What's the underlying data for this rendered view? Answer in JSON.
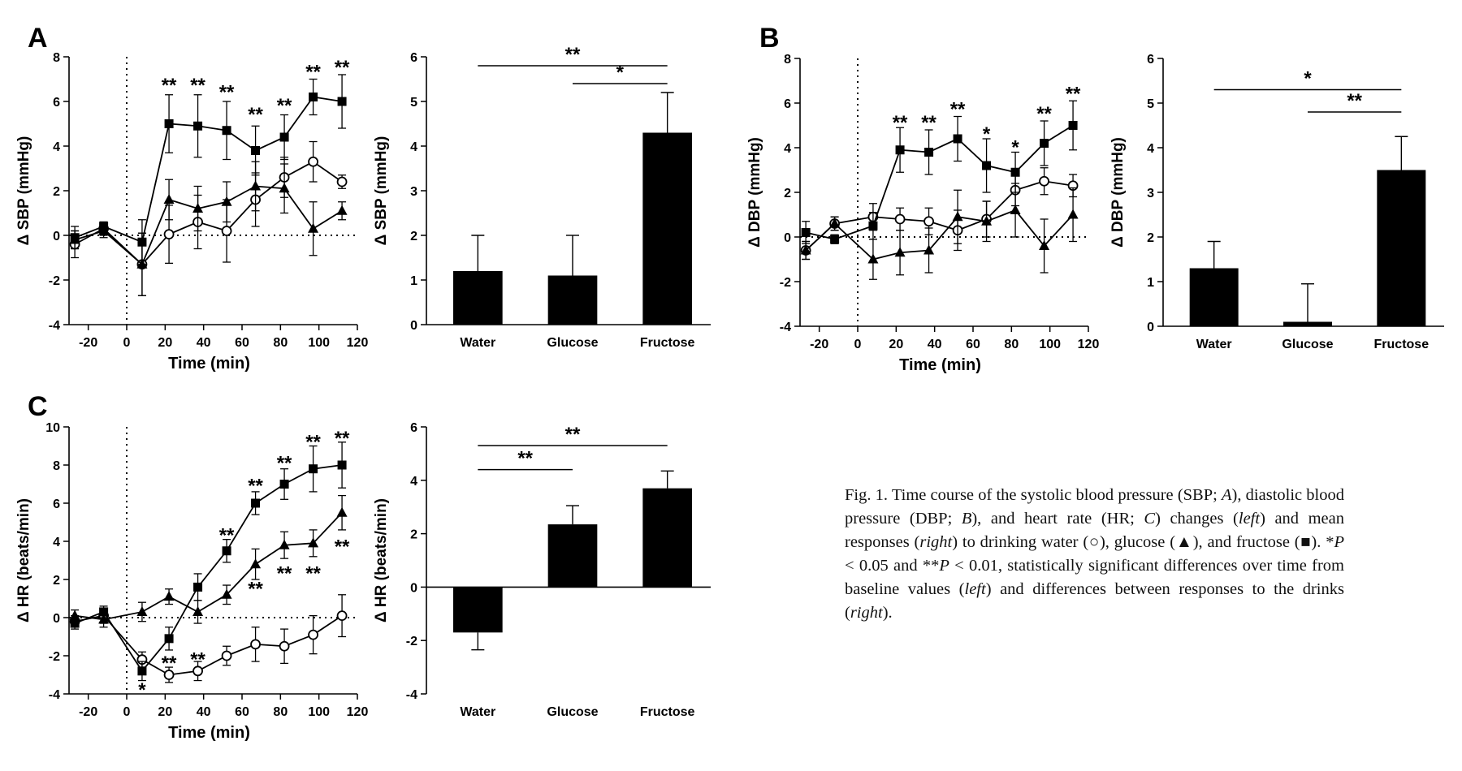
{
  "panel_labels": [
    "A",
    "B",
    "C"
  ],
  "caption": {
    "p1": "Fig. 1. Time course of the systolic blood pressure (SBP; ",
    "i1": "A",
    "p2": "), diastolic blood pressure (DBP; ",
    "i2": "B",
    "p3": "), and heart rate (HR; ",
    "i3": "C",
    "p4": ") changes (",
    "i4": "left",
    "p5": ") and mean responses (",
    "i5": "right",
    "p6": ") to drinking water (○), glucose (▲), and fructose (■). *",
    "i6": "P",
    "p7": " < 0.05 and **",
    "i7": "P",
    "p8": " < 0.01, statistically significant differences over time from baseline values (",
    "i8": "left",
    "p9": ") and differences between responses to the drinks (",
    "i9": "right",
    "p10": ")."
  },
  "chart_data": [
    {
      "id": "A-left",
      "type": "line",
      "panel": "A",
      "xlabel": "Time (min)",
      "ylabel": "Δ SBP (mmHg)",
      "xlim": [
        -30,
        120
      ],
      "ylim": [
        -4,
        8
      ],
      "xticks": [
        "-20",
        "0",
        "20",
        "40",
        "60",
        "80",
        "100",
        "120"
      ],
      "yticks": [
        "-4",
        "-2",
        "0",
        "2",
        "4",
        "6",
        "8"
      ],
      "series": [
        {
          "marker": "circle-open",
          "x": [
            -27,
            -12,
            8,
            22,
            37,
            52,
            67,
            82,
            97,
            112
          ],
          "y": [
            -0.4,
            0.3,
            -1.3,
            0.05,
            0.6,
            0.2,
            1.6,
            2.6,
            3.3,
            2.4
          ],
          "err": [
            0.6,
            0.3,
            1.4,
            1.3,
            1.2,
            1.4,
            1.2,
            0.9,
            0.9,
            0.3
          ]
        },
        {
          "marker": "triangle",
          "x": [
            -27,
            -12,
            8,
            22,
            37,
            52,
            67,
            82,
            97,
            112
          ],
          "y": [
            -0.2,
            0.2,
            -1.3,
            1.6,
            1.2,
            1.5,
            2.2,
            2.1,
            0.3,
            1.1
          ],
          "err": [
            0.4,
            0.3,
            1.4,
            0.9,
            1.0,
            0.9,
            1.1,
            1.1,
            1.2,
            0.4
          ]
        },
        {
          "marker": "square",
          "x": [
            -27,
            -12,
            8,
            22,
            37,
            52,
            67,
            82,
            97,
            112
          ],
          "y": [
            -0.1,
            0.4,
            -0.3,
            5.0,
            4.9,
            4.7,
            3.8,
            4.4,
            6.2,
            6.0
          ],
          "err": [
            0.5,
            0.2,
            1.0,
            1.3,
            1.4,
            1.3,
            1.1,
            1.0,
            0.8,
            1.2
          ]
        }
      ],
      "annotations": [
        {
          "x": 22,
          "y": 6.8,
          "text": "**"
        },
        {
          "x": 37,
          "y": 6.8,
          "text": "**"
        },
        {
          "x": 52,
          "y": 6.5,
          "text": "**"
        },
        {
          "x": 67,
          "y": 5.5,
          "text": "**"
        },
        {
          "x": 82,
          "y": 5.9,
          "text": "**"
        },
        {
          "x": 97,
          "y": 7.4,
          "text": "**"
        },
        {
          "x": 112,
          "y": 7.6,
          "text": "**"
        }
      ]
    },
    {
      "id": "A-right",
      "type": "bar",
      "panel": "A",
      "ylabel": "Δ SBP (mmHg)",
      "ylim": [
        0,
        6
      ],
      "categories": [
        "Water",
        "Glucose",
        "Fructose"
      ],
      "values": [
        1.2,
        1.1,
        4.3
      ],
      "err": [
        0.8,
        0.9,
        0.9
      ],
      "yticks": [
        "0",
        "1",
        "2",
        "3",
        "4",
        "5",
        "6"
      ],
      "brackets": [
        {
          "from": 0,
          "to": 2,
          "y": 5.8,
          "text": "**"
        },
        {
          "from": 1,
          "to": 2,
          "y": 5.4,
          "text": "*"
        }
      ]
    },
    {
      "id": "B-left",
      "type": "line",
      "panel": "B",
      "xlabel": "Time (min)",
      "ylabel": "Δ DBP (mmHg)",
      "xlim": [
        -30,
        120
      ],
      "ylim": [
        -4,
        8
      ],
      "xticks": [
        "-20",
        "0",
        "20",
        "40",
        "60",
        "80",
        "100",
        "120"
      ],
      "yticks": [
        "-4",
        "-2",
        "0",
        "2",
        "4",
        "6",
        "8"
      ],
      "series": [
        {
          "marker": "circle-open",
          "x": [
            -27,
            -12,
            8,
            22,
            37,
            52,
            67,
            82,
            97,
            112
          ],
          "y": [
            -0.6,
            0.6,
            0.9,
            0.8,
            0.7,
            0.3,
            0.8,
            2.1,
            2.5,
            2.3
          ],
          "err": [
            0.4,
            0.3,
            0.6,
            0.5,
            0.6,
            0.9,
            0.8,
            0.7,
            0.6,
            0.5
          ]
        },
        {
          "marker": "triangle",
          "x": [
            -27,
            -12,
            8,
            22,
            37,
            52,
            67,
            82,
            97,
            112
          ],
          "y": [
            -0.6,
            0.6,
            -1.0,
            -0.7,
            -0.6,
            0.9,
            0.7,
            1.2,
            -0.4,
            1.0
          ],
          "err": [
            0.4,
            0.3,
            0.9,
            1.0,
            1.0,
            1.2,
            0.9,
            1.2,
            1.2,
            1.2
          ]
        },
        {
          "marker": "square",
          "x": [
            -27,
            -12,
            8,
            22,
            37,
            52,
            67,
            82,
            97,
            112
          ],
          "y": [
            0.2,
            -0.1,
            0.5,
            3.9,
            3.8,
            4.4,
            3.2,
            2.9,
            4.2,
            5.0
          ],
          "err": [
            0.5,
            0.2,
            0.6,
            1.0,
            1.0,
            1.0,
            1.2,
            0.9,
            1.0,
            1.1
          ]
        }
      ],
      "annotations": [
        {
          "x": 22,
          "y": 5.2,
          "text": "**"
        },
        {
          "x": 37,
          "y": 5.2,
          "text": "**"
        },
        {
          "x": 52,
          "y": 5.8,
          "text": "**"
        },
        {
          "x": 67,
          "y": 4.7,
          "text": "*"
        },
        {
          "x": 82,
          "y": 4.1,
          "text": "*"
        },
        {
          "x": 97,
          "y": 5.6,
          "text": "**"
        },
        {
          "x": 112,
          "y": 6.5,
          "text": "**"
        }
      ]
    },
    {
      "id": "B-right",
      "type": "bar",
      "panel": "B",
      "ylabel": "Δ DBP (mmHg)",
      "ylim": [
        0,
        6
      ],
      "categories": [
        "Water",
        "Glucose",
        "Fructose"
      ],
      "values": [
        1.3,
        0.1,
        3.5
      ],
      "err": [
        0.6,
        0.85,
        0.75
      ],
      "yticks": [
        "0",
        "1",
        "2",
        "3",
        "4",
        "5",
        "6"
      ],
      "brackets": [
        {
          "from": 0,
          "to": 2,
          "y": 5.3,
          "text": "*"
        },
        {
          "from": 1,
          "to": 2,
          "y": 4.8,
          "text": "**"
        }
      ]
    },
    {
      "id": "C-left",
      "type": "line",
      "panel": "C",
      "xlabel": "Time (min)",
      "ylabel": "Δ HR (beats/min)",
      "xlim": [
        -30,
        120
      ],
      "ylim": [
        -4,
        10
      ],
      "xticks": [
        "-20",
        "0",
        "20",
        "40",
        "60",
        "80",
        "100",
        "120"
      ],
      "yticks": [
        "-4",
        "-2",
        "0",
        "2",
        "4",
        "6",
        "8",
        "10"
      ],
      "series": [
        {
          "marker": "circle-open",
          "x": [
            -27,
            -12,
            8,
            22,
            37,
            52,
            67,
            82,
            97,
            112
          ],
          "y": [
            -0.2,
            0.1,
            -2.2,
            -3.0,
            -2.8,
            -2.0,
            -1.4,
            -1.5,
            -0.9,
            0.1
          ],
          "err": [
            0.3,
            0.4,
            0.4,
            0.4,
            0.5,
            0.5,
            0.9,
            0.9,
            1.0,
            1.1
          ]
        },
        {
          "marker": "triangle",
          "x": [
            -27,
            -12,
            8,
            22,
            37,
            52,
            67,
            82,
            97,
            112
          ],
          "y": [
            0.1,
            -0.1,
            0.3,
            1.1,
            0.3,
            1.2,
            2.8,
            3.8,
            3.9,
            5.5
          ],
          "err": [
            0.3,
            0.4,
            0.5,
            0.4,
            0.6,
            0.5,
            0.8,
            0.7,
            0.7,
            0.9
          ]
        },
        {
          "marker": "square",
          "x": [
            -27,
            -12,
            8,
            22,
            37,
            52,
            67,
            82,
            97,
            112
          ],
          "y": [
            -0.3,
            0.3,
            -2.8,
            -1.1,
            1.6,
            3.5,
            6.0,
            7.0,
            7.8,
            8.0
          ],
          "err": [
            0.3,
            0.3,
            0.5,
            0.6,
            0.7,
            0.6,
            0.6,
            0.8,
            1.2,
            1.2
          ]
        }
      ],
      "annotations": [
        {
          "x": 8,
          "y": -3.7,
          "text": "*"
        },
        {
          "x": 22,
          "y": -2.3,
          "text": "**"
        },
        {
          "x": 37,
          "y": -2.1,
          "text": "**"
        },
        {
          "x": 52,
          "y": 4.4,
          "text": "**"
        },
        {
          "x": 67,
          "y": 7.0,
          "text": "**"
        },
        {
          "x": 67,
          "y": 1.6,
          "text": "**"
        },
        {
          "x": 82,
          "y": 8.2,
          "text": "**"
        },
        {
          "x": 82,
          "y": 2.4,
          "text": "**"
        },
        {
          "x": 97,
          "y": 9.3,
          "text": "**"
        },
        {
          "x": 97,
          "y": 2.4,
          "text": "**"
        },
        {
          "x": 112,
          "y": 9.5,
          "text": "**"
        },
        {
          "x": 112,
          "y": 3.8,
          "text": "**"
        }
      ]
    },
    {
      "id": "C-right",
      "type": "bar",
      "panel": "C",
      "ylabel": "Δ HR (beats/min)",
      "ylim": [
        -4,
        6
      ],
      "categories": [
        "Water",
        "Glucose",
        "Fructose"
      ],
      "values": [
        -1.7,
        2.35,
        3.7
      ],
      "err": [
        0.65,
        0.7,
        0.65
      ],
      "yticks": [
        "-4",
        "-2",
        "0",
        "2",
        "4",
        "6"
      ],
      "brackets": [
        {
          "from": 0,
          "to": 2,
          "y": 5.3,
          "text": "**"
        },
        {
          "from": 0,
          "to": 1,
          "y": 4.4,
          "text": "**"
        }
      ]
    }
  ]
}
